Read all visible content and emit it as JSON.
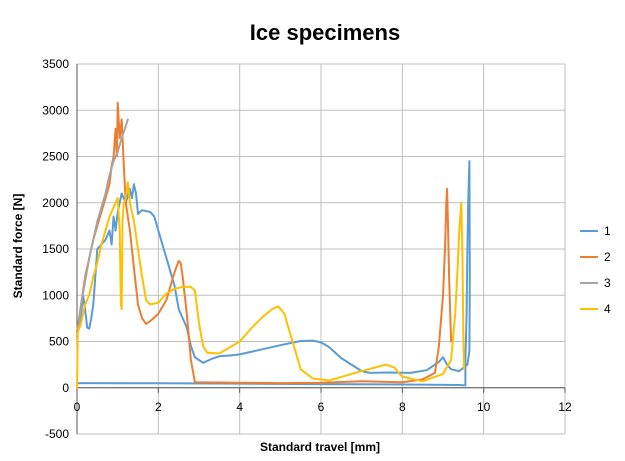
{
  "chart_data": {
    "type": "line",
    "title": "Ice specimens",
    "xlabel": "Standard travel [mm]",
    "ylabel": "Standard force [N]",
    "xlim": [
      0,
      12
    ],
    "ylim": [
      -500,
      3500
    ],
    "x_ticks": [
      "0",
      "2",
      "4",
      "6",
      "8",
      "10",
      "12"
    ],
    "y_ticks": [
      "-500",
      "0",
      "500",
      "1000",
      "1500",
      "2000",
      "2500",
      "3000",
      "3500"
    ],
    "grid": true,
    "legend_position": "right",
    "series": [
      {
        "name": "1",
        "color": "#5B9BD5",
        "points": [
          [
            0,
            50
          ],
          [
            2,
            48
          ],
          [
            4,
            45
          ],
          [
            6,
            40
          ],
          [
            8,
            35
          ],
          [
            9.4,
            30
          ],
          [
            9.5,
            28
          ],
          [
            9.55,
            25
          ],
          [
            9.55,
            300
          ],
          [
            9.58,
            800
          ],
          [
            9.6,
            1500
          ],
          [
            9.62,
            2000
          ],
          [
            9.65,
            2450
          ],
          [
            9.66,
            1200
          ],
          [
            9.65,
            400
          ],
          [
            9.6,
            250
          ],
          [
            9.4,
            180
          ],
          [
            9.2,
            200
          ],
          [
            9.1,
            250
          ],
          [
            9.0,
            330
          ],
          [
            8.9,
            280
          ],
          [
            8.6,
            190
          ],
          [
            8.2,
            160
          ],
          [
            7.7,
            165
          ],
          [
            7.2,
            160
          ],
          [
            7.0,
            180
          ],
          [
            6.5,
            320
          ],
          [
            6.2,
            440
          ],
          [
            6.0,
            490
          ],
          [
            5.8,
            510
          ],
          [
            5.5,
            505
          ],
          [
            5.0,
            460
          ],
          [
            4.5,
            410
          ],
          [
            4.0,
            360
          ],
          [
            3.8,
            350
          ],
          [
            3.5,
            340
          ],
          [
            3.3,
            310
          ],
          [
            3.1,
            270
          ],
          [
            3.0,
            300
          ],
          [
            2.9,
            330
          ],
          [
            2.8,
            450
          ],
          [
            2.7,
            650
          ],
          [
            2.5,
            850
          ],
          [
            2.4,
            1100
          ],
          [
            2.2,
            1400
          ],
          [
            2.0,
            1700
          ],
          [
            1.9,
            1850
          ],
          [
            1.8,
            1900
          ],
          [
            1.6,
            1920
          ],
          [
            1.5,
            1880
          ],
          [
            1.45,
            2100
          ],
          [
            1.4,
            2200
          ],
          [
            1.35,
            2050
          ],
          [
            1.3,
            2150
          ],
          [
            1.2,
            2000
          ],
          [
            1.1,
            2100
          ],
          [
            1.0,
            1900
          ],
          [
            0.95,
            1700
          ],
          [
            0.9,
            1850
          ],
          [
            0.85,
            1550
          ],
          [
            0.8,
            1700
          ],
          [
            0.7,
            1600
          ],
          [
            0.6,
            1550
          ],
          [
            0.5,
            1500
          ],
          [
            0.45,
            1200
          ],
          [
            0.4,
            900
          ],
          [
            0.35,
            750
          ],
          [
            0.3,
            640
          ],
          [
            0.25,
            650
          ],
          [
            0.2,
            850
          ],
          [
            0.15,
            1000
          ],
          [
            0.1,
            800
          ],
          [
            0.05,
            650
          ],
          [
            0,
            600
          ]
        ]
      },
      {
        "name": "2",
        "color": "#ED7D31",
        "points": [
          [
            0,
            600
          ],
          [
            0.1,
            900
          ],
          [
            0.2,
            1200
          ],
          [
            0.3,
            1400
          ],
          [
            0.4,
            1600
          ],
          [
            0.5,
            1750
          ],
          [
            0.6,
            1900
          ],
          [
            0.7,
            2050
          ],
          [
            0.8,
            2200
          ],
          [
            0.85,
            2400
          ],
          [
            0.9,
            2500
          ],
          [
            0.95,
            2800
          ],
          [
            0.98,
            2500
          ],
          [
            1.0,
            3080
          ],
          [
            1.05,
            2700
          ],
          [
            1.1,
            2900
          ],
          [
            1.15,
            2400
          ],
          [
            1.2,
            2000
          ],
          [
            1.3,
            1700
          ],
          [
            1.4,
            1300
          ],
          [
            1.5,
            900
          ],
          [
            1.6,
            750
          ],
          [
            1.7,
            690
          ],
          [
            1.8,
            720
          ],
          [
            2.0,
            800
          ],
          [
            2.2,
            950
          ],
          [
            2.3,
            1100
          ],
          [
            2.4,
            1250
          ],
          [
            2.5,
            1370
          ],
          [
            2.55,
            1350
          ],
          [
            2.6,
            1200
          ],
          [
            2.7,
            800
          ],
          [
            2.8,
            300
          ],
          [
            2.9,
            60
          ],
          [
            4,
            55
          ],
          [
            5,
            50
          ],
          [
            6,
            55
          ],
          [
            7,
            70
          ],
          [
            8,
            60
          ],
          [
            8.5,
            90
          ],
          [
            8.8,
            160
          ],
          [
            8.9,
            450
          ],
          [
            9.0,
            1000
          ],
          [
            9.05,
            1500
          ],
          [
            9.08,
            2000
          ],
          [
            9.1,
            2150
          ],
          [
            9.12,
            1800
          ],
          [
            9.15,
            1200
          ],
          [
            9.2,
            500
          ]
        ]
      },
      {
        "name": "3",
        "color": "#A5A5A5",
        "points": [
          [
            0,
            550
          ],
          [
            0.1,
            900
          ],
          [
            0.2,
            1150
          ],
          [
            0.3,
            1400
          ],
          [
            0.35,
            1500
          ],
          [
            0.4,
            1600
          ],
          [
            0.5,
            1800
          ],
          [
            0.6,
            1950
          ],
          [
            0.7,
            2100
          ],
          [
            0.8,
            2300
          ],
          [
            0.9,
            2450
          ],
          [
            1.0,
            2550
          ],
          [
            1.1,
            2700
          ],
          [
            1.2,
            2830
          ],
          [
            1.25,
            2900
          ]
        ]
      },
      {
        "name": "4",
        "color": "#FFC000",
        "points": [
          [
            0,
            0
          ],
          [
            0.02,
            600
          ],
          [
            0.1,
            700
          ],
          [
            0.2,
            900
          ],
          [
            0.3,
            1000
          ],
          [
            0.4,
            1200
          ],
          [
            0.5,
            1350
          ],
          [
            0.6,
            1550
          ],
          [
            0.7,
            1700
          ],
          [
            0.8,
            1850
          ],
          [
            0.9,
            1950
          ],
          [
            1.0,
            2050
          ],
          [
            1.05,
            1700
          ],
          [
            1.08,
            900
          ],
          [
            1.1,
            850
          ],
          [
            1.12,
            1800
          ],
          [
            1.15,
            2000
          ],
          [
            1.2,
            2050
          ],
          [
            1.25,
            2220
          ],
          [
            1.3,
            2000
          ],
          [
            1.4,
            1800
          ],
          [
            1.5,
            1500
          ],
          [
            1.6,
            1200
          ],
          [
            1.7,
            950
          ],
          [
            1.8,
            900
          ],
          [
            2.0,
            920
          ],
          [
            2.2,
            1020
          ],
          [
            2.4,
            1070
          ],
          [
            2.6,
            1090
          ],
          [
            2.8,
            1090
          ],
          [
            2.9,
            1050
          ],
          [
            3.0,
            700
          ],
          [
            3.1,
            450
          ],
          [
            3.2,
            380
          ],
          [
            3.5,
            370
          ],
          [
            4.0,
            500
          ],
          [
            4.3,
            650
          ],
          [
            4.6,
            780
          ],
          [
            4.8,
            850
          ],
          [
            4.95,
            880
          ],
          [
            5.1,
            800
          ],
          [
            5.3,
            500
          ],
          [
            5.5,
            200
          ],
          [
            5.8,
            100
          ],
          [
            6.2,
            80
          ],
          [
            7.0,
            180
          ],
          [
            7.6,
            250
          ],
          [
            7.8,
            220
          ],
          [
            8.0,
            120
          ],
          [
            8.5,
            70
          ],
          [
            9.0,
            150
          ],
          [
            9.2,
            300
          ],
          [
            9.3,
            800
          ],
          [
            9.35,
            1200
          ],
          [
            9.4,
            1700
          ],
          [
            9.45,
            2000
          ],
          [
            9.48,
            1400
          ],
          [
            9.5,
            600
          ],
          [
            9.52,
            200
          ]
        ]
      }
    ]
  }
}
